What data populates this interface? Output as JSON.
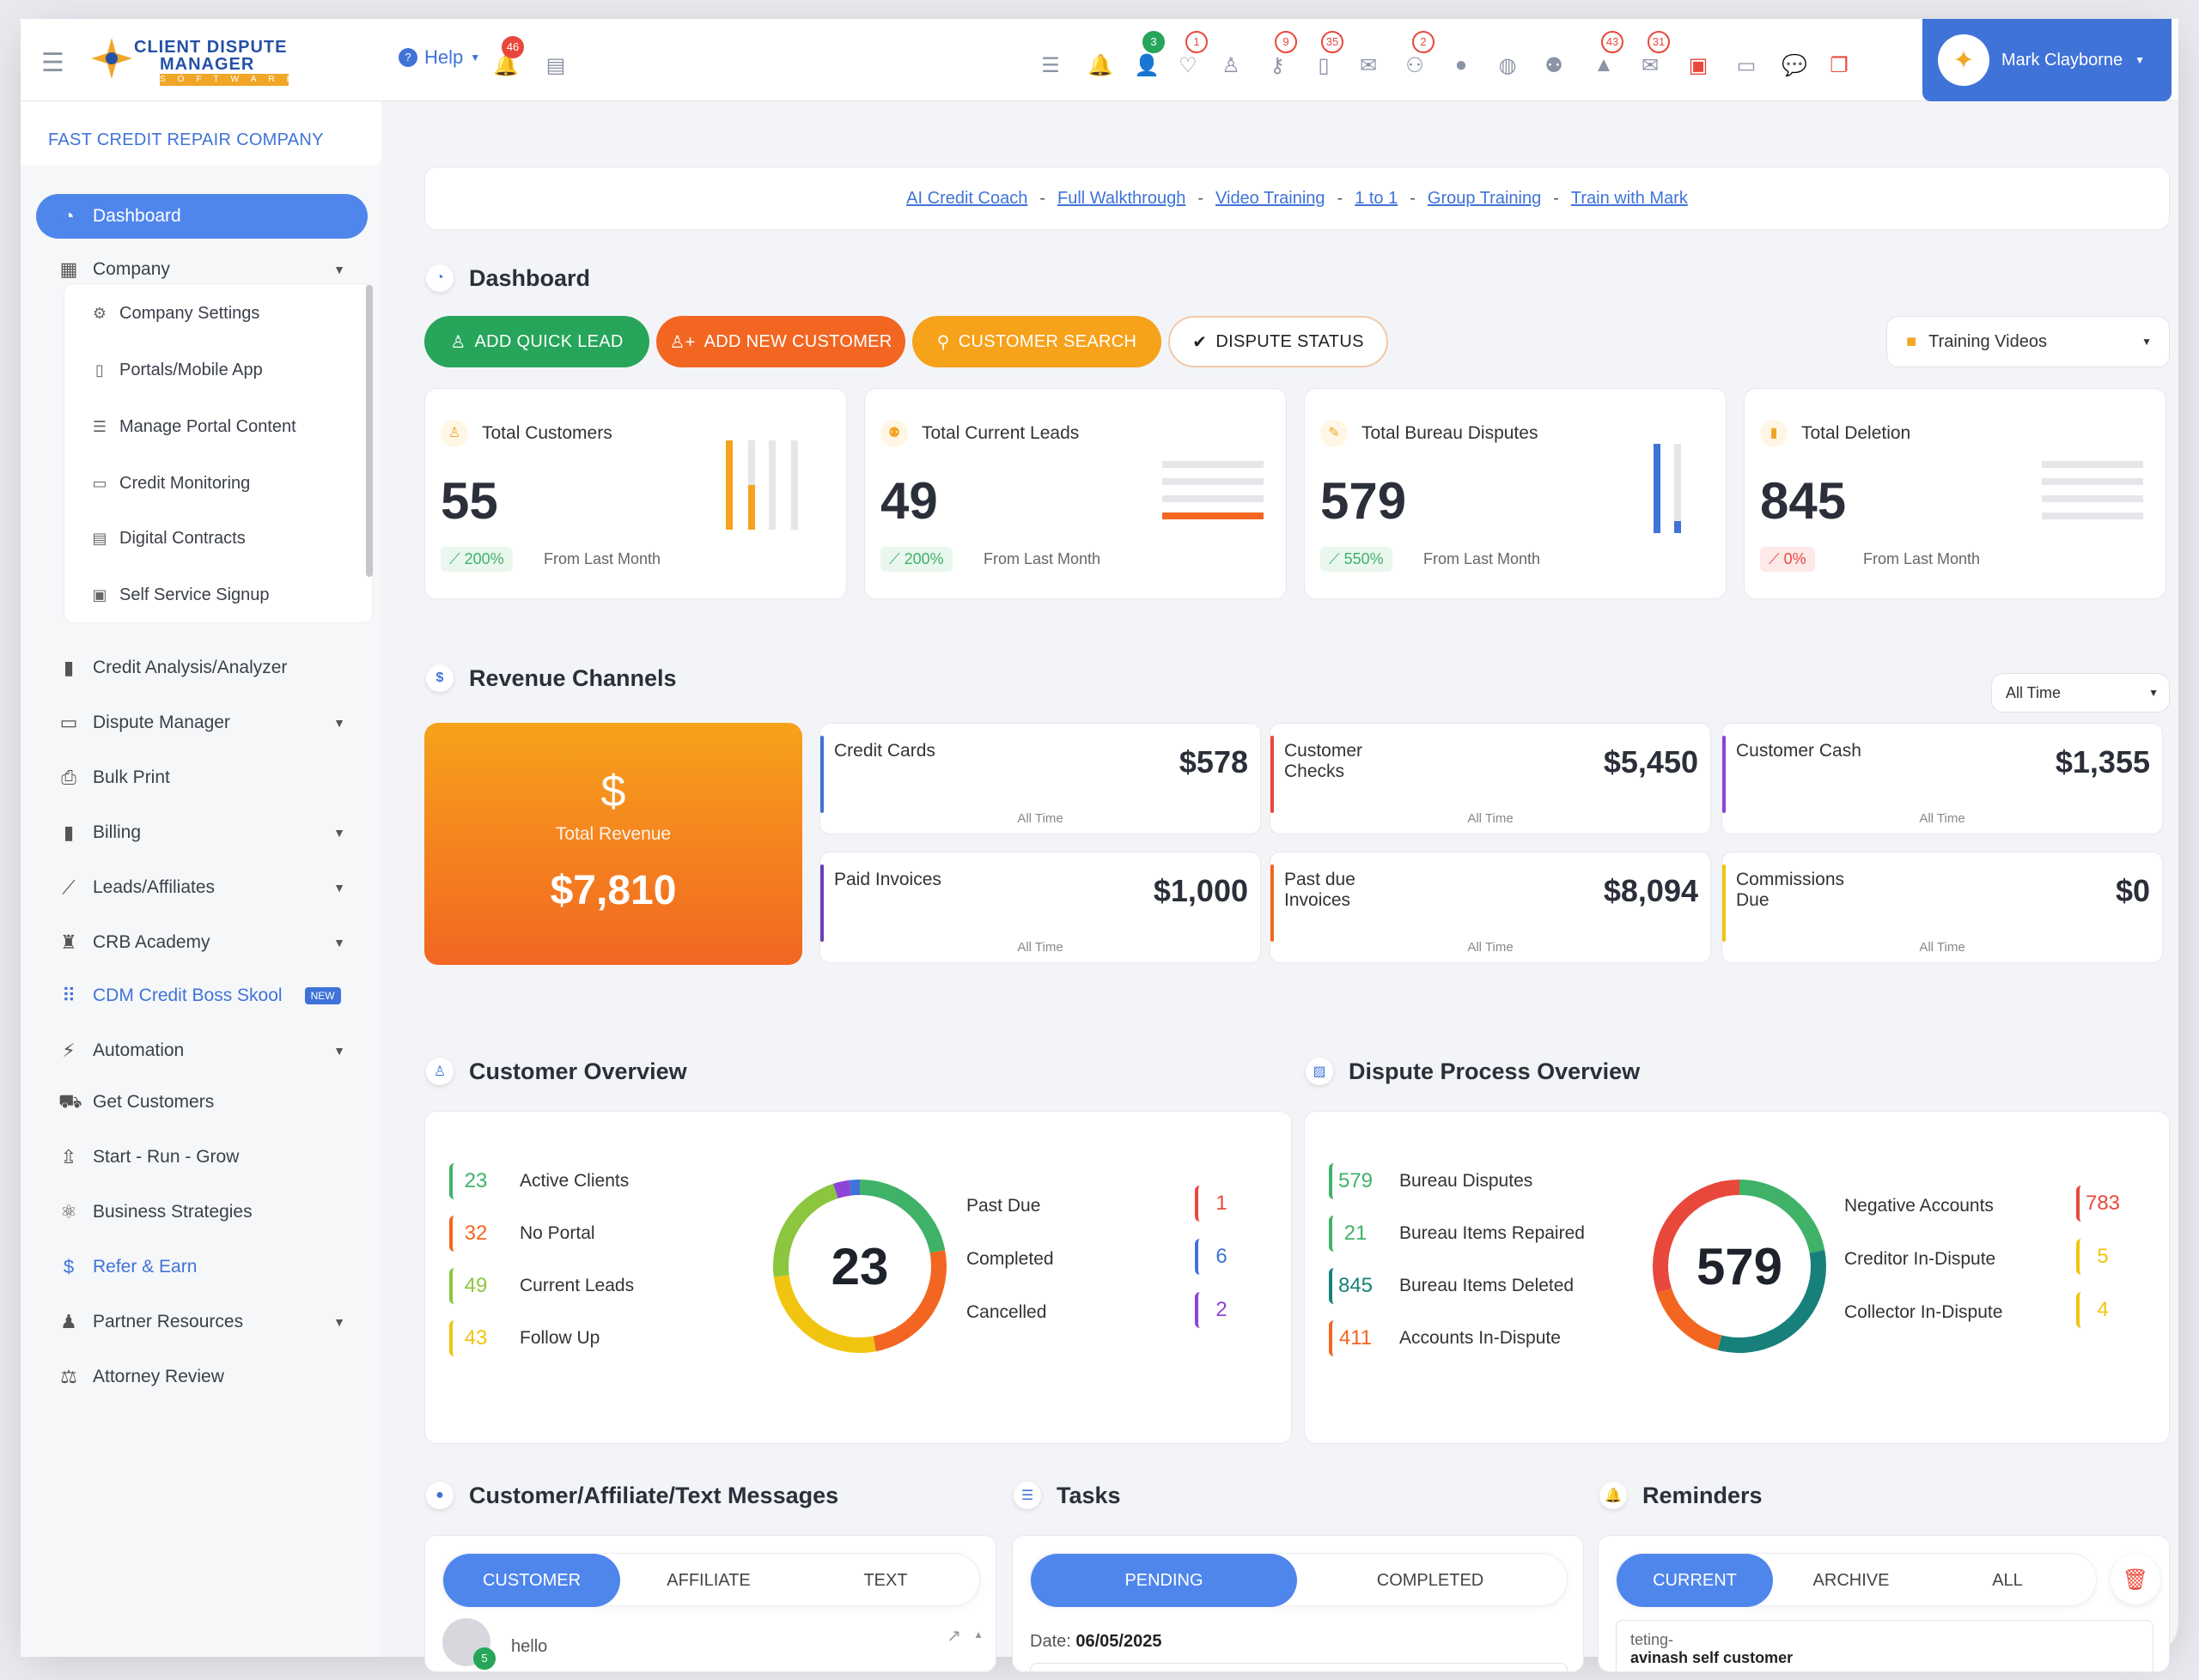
{
  "company_name": "FAST CREDIT REPAIR COMPANY",
  "logo": {
    "line1": "CLIENT DISPUTE",
    "line2": "MANAGER",
    "line3": "SOFTWARE"
  },
  "header": {
    "help_label": "Help",
    "help_badge": "46",
    "user_name": "Mark Clayborne",
    "badges": {
      "b1": "3",
      "b2": "1",
      "b3": "9",
      "b4": "35",
      "b5": "2",
      "b6": "43",
      "b7": "31"
    }
  },
  "sidebar": {
    "dashboard": "Dashboard",
    "company": "Company",
    "company_sub": [
      "Company Settings",
      "Portals/Mobile App",
      "Manage Portal Content",
      "Credit Monitoring",
      "Digital Contracts",
      "Self Service Signup"
    ],
    "items": [
      "Credit Analysis/Analyzer",
      "Dispute Manager",
      "Bulk Print",
      "Billing",
      "Leads/Affiliates",
      "CRB Academy",
      "CDM Credit Boss Skool",
      "Automation",
      "Get Customers",
      "Start - Run - Grow",
      "Business Strategies",
      "Refer & Earn",
      "Partner Resources",
      "Attorney Review"
    ],
    "new_badge": "NEW"
  },
  "links": [
    "AI Credit Coach",
    "Full Walkthrough",
    "Video Training",
    "1 to 1",
    "Group Training",
    "Train with Mark"
  ],
  "dashboard": {
    "title": "Dashboard",
    "buttons": {
      "quick_lead": "ADD QUICK LEAD",
      "new_customer": "ADD NEW CUSTOMER",
      "search": "CUSTOMER SEARCH",
      "dispute_status": "DISPUTE STATUS"
    },
    "training_videos": "Training Videos",
    "stats": [
      {
        "title": "Total Customers",
        "value": "55",
        "change": "200%",
        "from": "From Last Month"
      },
      {
        "title": "Total Current Leads",
        "value": "49",
        "change": "200%",
        "from": "From Last Month"
      },
      {
        "title": "Total Bureau Disputes",
        "value": "579",
        "change": "550%",
        "from": "From Last Month"
      },
      {
        "title": "Total Deletion",
        "value": "845",
        "change": "0%",
        "from": "From Last Month"
      }
    ]
  },
  "revenue": {
    "title": "Revenue Channels",
    "filter": "All Time",
    "total_label": "Total Revenue",
    "total": "$7,810",
    "cards": [
      {
        "name": "Credit Cards",
        "amount": "$578",
        "period": "All Time",
        "color": "#3f73d8"
      },
      {
        "name": "Customer Checks",
        "amount": "$5,450",
        "period": "All Time",
        "color": "#e8483b"
      },
      {
        "name": "Customer Cash",
        "amount": "$1,355",
        "period": "All Time",
        "color": "#8e44d6"
      },
      {
        "name": "Paid Invoices",
        "amount": "$1,000",
        "period": "All Time",
        "color": "#6a3fb8"
      },
      {
        "name": "Past due Invoices",
        "amount": "$8,094",
        "period": "All Time",
        "color": "#f26622"
      },
      {
        "name": "Commissions Due",
        "amount": "$0",
        "period": "All Time",
        "color": "#f1c40f"
      }
    ]
  },
  "customer_overview": {
    "title": "Customer Overview",
    "rows": [
      {
        "n": "23",
        "label": "Active Clients",
        "color": "#3fb268"
      },
      {
        "n": "32",
        "label": "No Portal",
        "color": "#f26622"
      },
      {
        "n": "49",
        "label": "Current Leads",
        "color": "#8cc63f"
      },
      {
        "n": "43",
        "label": "Follow Up",
        "color": "#f1c40f"
      }
    ],
    "center": "23",
    "right": [
      {
        "label": "Past Due",
        "n": "1",
        "color": "#e8483b"
      },
      {
        "label": "Completed",
        "n": "6",
        "color": "#3f73d8"
      },
      {
        "label": "Cancelled",
        "n": "2",
        "color": "#8e44d6"
      }
    ]
  },
  "dispute_overview": {
    "title": "Dispute Process Overview",
    "rows": [
      {
        "n": "579",
        "label": "Bureau Disputes",
        "color": "#3fb268"
      },
      {
        "n": "21",
        "label": "Bureau Items Repaired",
        "color": "#3fb268"
      },
      {
        "n": "845",
        "label": "Bureau Items Deleted",
        "color": "#17807a"
      },
      {
        "n": "411",
        "label": "Accounts In-Dispute",
        "color": "#f26622"
      }
    ],
    "center": "579",
    "right": [
      {
        "label": "Negative Accounts",
        "n": "783",
        "color": "#e8483b"
      },
      {
        "label": "Creditor In-Dispute",
        "n": "5",
        "color": "#f1c40f"
      },
      {
        "label": "Collector In-Dispute",
        "n": "4",
        "color": "#f1c40f"
      }
    ]
  },
  "messages": {
    "title": "Customer/Affiliate/Text Messages",
    "tabs": [
      "CUSTOMER",
      "AFFILIATE",
      "TEXT"
    ],
    "preview": "hello",
    "avatar_badge": "5"
  },
  "tasks": {
    "title": "Tasks",
    "tabs": [
      "PENDING",
      "COMPLETED"
    ],
    "date_label": "Date:",
    "date": "06/05/2025"
  },
  "reminders": {
    "title": "Reminders",
    "tabs": [
      "CURRENT",
      "ARCHIVE",
      "ALL"
    ],
    "line1": "teting-",
    "line2": "avinash self customer"
  }
}
